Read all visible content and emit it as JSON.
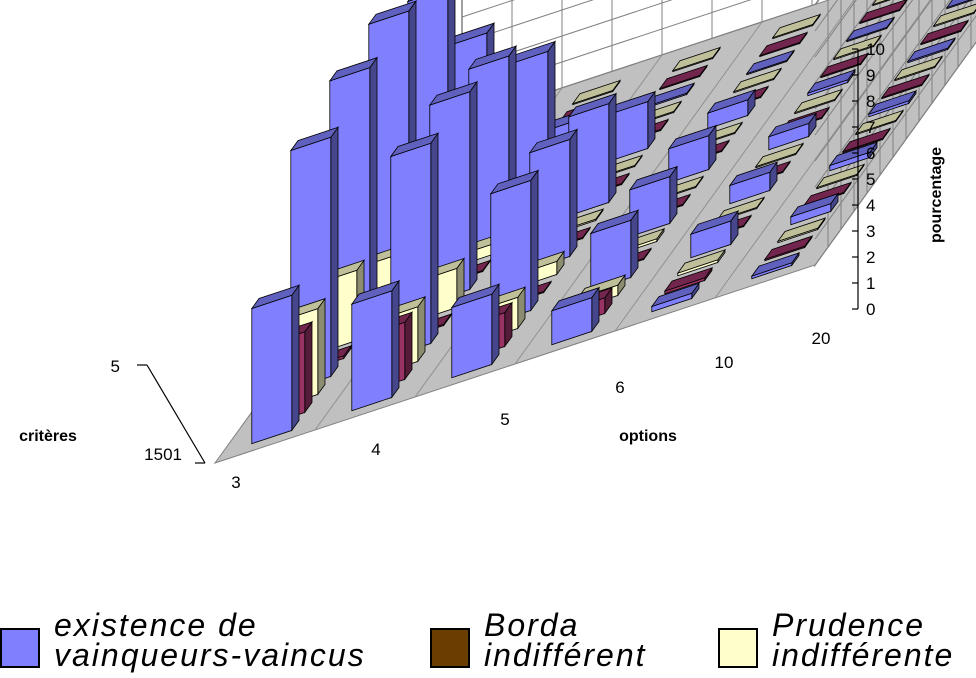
{
  "chart_data": {
    "type": "bar3d",
    "x_axis": {
      "label": "options",
      "categories": [
        "3",
        "4",
        "5",
        "6",
        "10",
        "20"
      ]
    },
    "depth_axis": {
      "label": "critères",
      "ticks": [
        "5",
        "1501"
      ]
    },
    "z_axis": {
      "label": "pourcentage",
      "range": [
        0,
        10
      ],
      "ticks": [
        "0",
        "1",
        "2",
        "3",
        "4",
        "5",
        "6",
        "7",
        "8",
        "9",
        "10"
      ]
    },
    "series": [
      {
        "name": "existence de vainqueurs-vaincus",
        "color": "#8080ff",
        "values": [
          [
            5.2,
            4.1,
            2.7,
            1.3,
            0.2,
            0.1
          ],
          [
            9.2,
            7.7,
            5.0,
            2.2,
            0.9,
            0.3
          ],
          [
            9.8,
            7.6,
            4.5,
            1.8,
            0.7,
            0.2
          ],
          [
            9.9,
            6.9,
            3.8,
            1.3,
            0.5,
            0.1
          ],
          [
            8.7,
            5.0,
            1.8,
            0.6,
            0.1,
            0.05
          ],
          [
            4.9,
            0.4,
            0.05,
            0.0,
            0.0,
            0.0
          ]
        ]
      },
      {
        "name": "Borda indifférent",
        "color": "#993366",
        "values": [
          [
            3.1,
            2.2,
            1.3,
            0.6,
            0.1,
            0.05
          ],
          [
            0.1,
            0.05,
            0.0,
            0.0,
            0.0,
            0.0
          ],
          [
            0.05,
            0.0,
            0.0,
            0.0,
            0.0,
            0.0
          ],
          [
            0.05,
            0.0,
            0.0,
            0.0,
            0.0,
            0.0
          ],
          [
            0.0,
            0.0,
            0.0,
            0.0,
            0.0,
            0.0
          ],
          [
            0.0,
            0.0,
            0.0,
            0.0,
            0.0,
            0.0
          ]
        ]
      },
      {
        "name": "Prudence indifférente",
        "color": "#ffffcc",
        "values": [
          [
            3.3,
            2.1,
            1.2,
            0.4,
            0.1,
            0.05
          ],
          [
            2.7,
            1.5,
            0.5,
            0.1,
            0.0,
            0.0
          ],
          [
            1.2,
            0.4,
            0.05,
            0.0,
            0.0,
            0.0
          ],
          [
            0.4,
            0.05,
            0.0,
            0.0,
            0.0,
            0.0
          ],
          [
            0.0,
            0.0,
            0.0,
            0.0,
            0.0,
            0.0
          ],
          [
            0.0,
            0.0,
            0.0,
            0.0,
            0.0,
            0.0
          ]
        ]
      }
    ]
  },
  "legend": {
    "items": [
      {
        "label": "existence de\nvainqueurs-vaincus",
        "color": "#8080ff"
      },
      {
        "label": "Borda\nindifférent",
        "color": "#6b3d00"
      },
      {
        "label": "Prudence\nindifférente",
        "color": "#ffffcc"
      }
    ]
  }
}
